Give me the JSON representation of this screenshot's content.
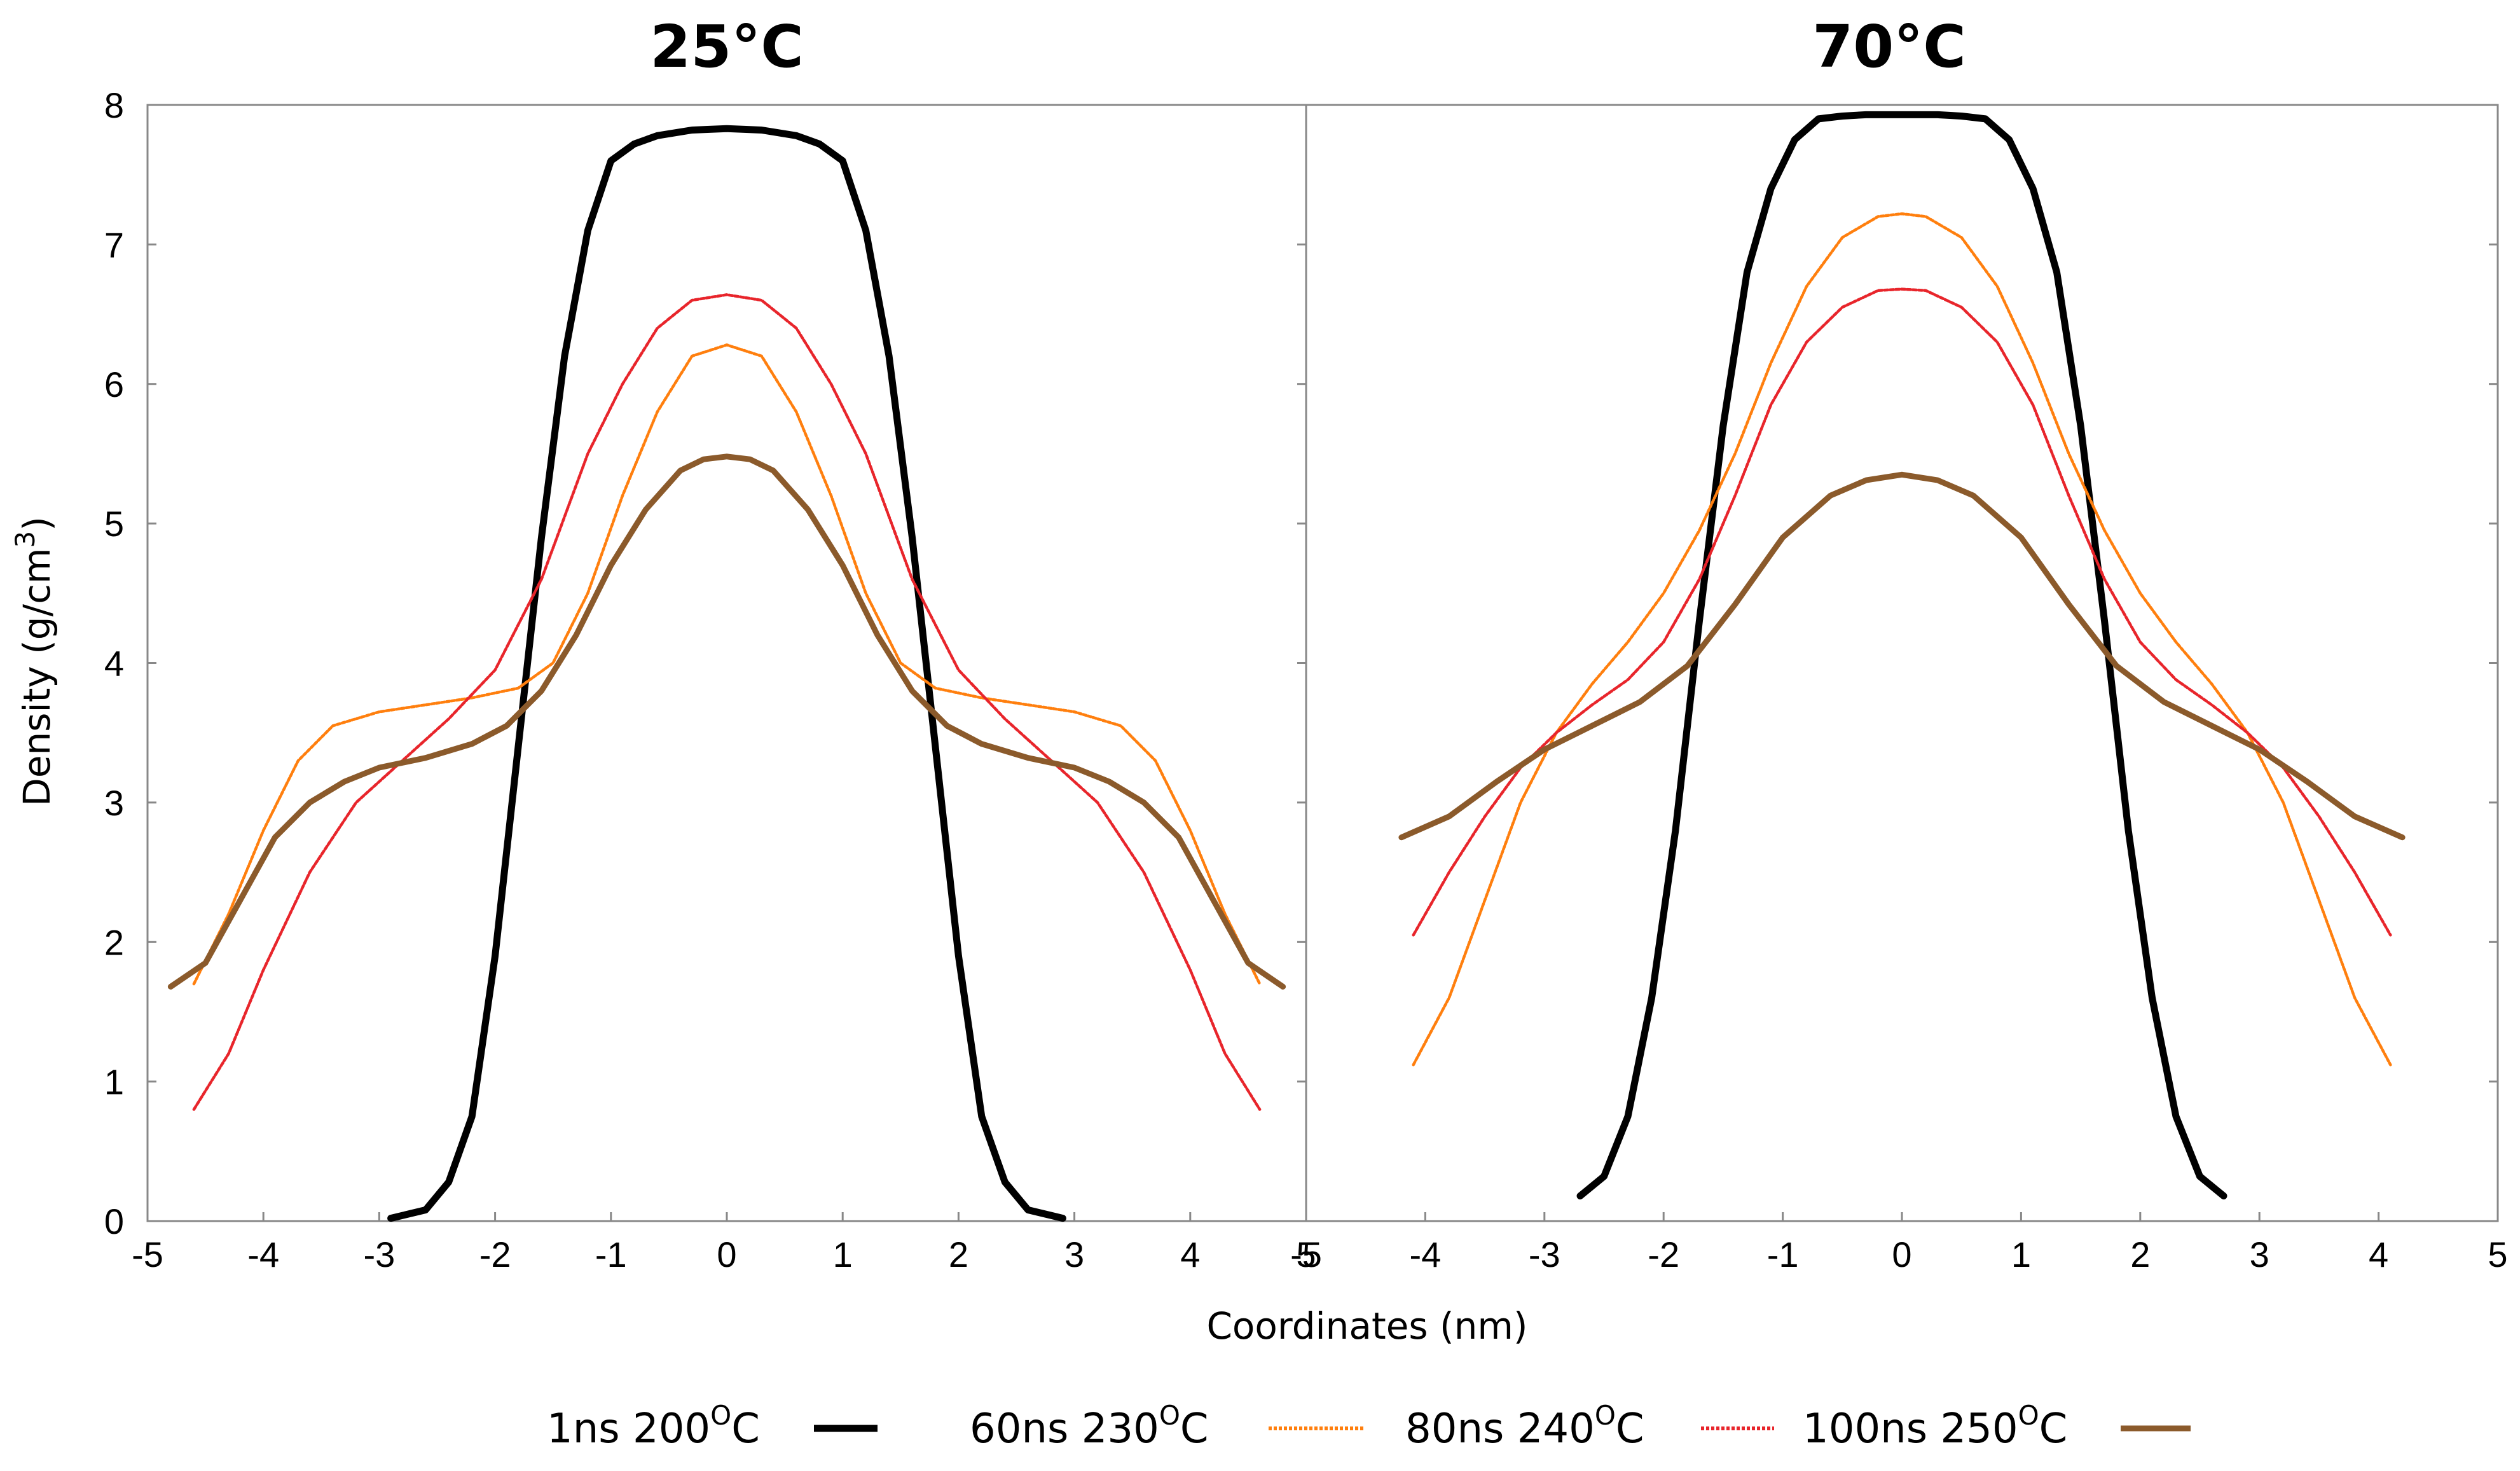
{
  "chart_data": {
    "type": "line",
    "xlabel": "Coordinates (nm)",
    "ylabel": "Density (g/cm",
    "ylabel_sup": "3",
    "ylabel_close": ")",
    "ylim": [
      0,
      8
    ],
    "y_ticks": [
      "0",
      "1",
      "2",
      "3",
      "4",
      "5",
      "6",
      "7",
      "8"
    ],
    "x_ticks": [
      "-5",
      "-4",
      "-3",
      "-2",
      "-1",
      "0",
      "1",
      "2",
      "3",
      "4",
      "5"
    ],
    "legend": [
      {
        "prefix": "1ns 200",
        "sup": "O",
        "suffix": "C",
        "color": "#000000",
        "style": "solid"
      },
      {
        "prefix": "60ns 230",
        "sup": "O",
        "suffix": "C",
        "color": "#ff7f0e",
        "style": "dotted"
      },
      {
        "prefix": "80ns 240",
        "sup": "O",
        "suffix": "C",
        "color": "#e8252b",
        "style": "dotted"
      },
      {
        "prefix": "100ns 250",
        "sup": "O",
        "suffix": "C",
        "color": "#8b5a2b",
        "style": "solid"
      }
    ],
    "panels": [
      {
        "title": "25°C",
        "xlim": [
          -5,
          5
        ],
        "series": [
          {
            "name": "1ns 200°C",
            "x": [
              -2.9,
              -2.6,
              -2.4,
              -2.2,
              -2.0,
              -1.8,
              -1.6,
              -1.4,
              -1.2,
              -1.0,
              -0.8,
              -0.6,
              -0.3,
              0,
              0.3,
              0.6,
              0.8,
              1.0,
              1.2,
              1.4,
              1.6,
              1.8,
              2.0,
              2.2,
              2.4,
              2.6,
              2.9
            ],
            "y": [
              0.02,
              0.08,
              0.28,
              0.75,
              1.9,
              3.4,
              4.9,
              6.2,
              7.1,
              7.6,
              7.72,
              7.78,
              7.82,
              7.83,
              7.82,
              7.78,
              7.72,
              7.6,
              7.1,
              6.2,
              4.9,
              3.4,
              1.9,
              0.75,
              0.28,
              0.08,
              0.02
            ]
          },
          {
            "name": "60ns 230°C",
            "x": [
              -4.6,
              -4.3,
              -4.0,
              -3.7,
              -3.4,
              -3.0,
              -2.6,
              -2.2,
              -1.8,
              -1.5,
              -1.2,
              -0.9,
              -0.6,
              -0.3,
              0,
              0.3,
              0.6,
              0.9,
              1.2,
              1.5,
              1.8,
              2.2,
              2.6,
              3.0,
              3.4,
              3.7,
              4.0,
              4.3,
              4.6
            ],
            "y": [
              1.7,
              2.2,
              2.8,
              3.3,
              3.55,
              3.65,
              3.7,
              3.75,
              3.82,
              4.0,
              4.5,
              5.2,
              5.8,
              6.2,
              6.28,
              6.2,
              5.8,
              5.2,
              4.5,
              4.0,
              3.82,
              3.75,
              3.7,
              3.65,
              3.55,
              3.3,
              2.8,
              2.2,
              1.7
            ]
          },
          {
            "name": "80ns 240°C",
            "x": [
              -4.6,
              -4.3,
              -4.0,
              -3.6,
              -3.2,
              -2.8,
              -2.4,
              -2.0,
              -1.6,
              -1.2,
              -0.9,
              -0.6,
              -0.3,
              0,
              0.3,
              0.6,
              0.9,
              1.2,
              1.6,
              2.0,
              2.4,
              2.8,
              3.2,
              3.6,
              4.0,
              4.3,
              4.6
            ],
            "y": [
              0.8,
              1.2,
              1.8,
              2.5,
              3.0,
              3.3,
              3.6,
              3.95,
              4.6,
              5.5,
              6.0,
              6.4,
              6.6,
              6.64,
              6.6,
              6.4,
              6.0,
              5.5,
              4.6,
              3.95,
              3.6,
              3.3,
              3.0,
              2.5,
              1.8,
              1.2,
              0.8
            ]
          },
          {
            "name": "100ns 250°C",
            "x": [
              -4.8,
              -4.5,
              -4.2,
              -3.9,
              -3.6,
              -3.3,
              -3.0,
              -2.6,
              -2.2,
              -1.9,
              -1.6,
              -1.3,
              -1.0,
              -0.7,
              -0.4,
              -0.2,
              0,
              0.2,
              0.4,
              0.7,
              1.0,
              1.3,
              1.6,
              1.9,
              2.2,
              2.6,
              3.0,
              3.3,
              3.6,
              3.9,
              4.2,
              4.5,
              4.8
            ],
            "y": [
              1.68,
              1.85,
              2.3,
              2.75,
              3.0,
              3.15,
              3.25,
              3.32,
              3.42,
              3.55,
              3.8,
              4.2,
              4.7,
              5.1,
              5.38,
              5.46,
              5.48,
              5.46,
              5.38,
              5.1,
              4.7,
              4.2,
              3.8,
              3.55,
              3.42,
              3.32,
              3.25,
              3.15,
              3.0,
              2.75,
              2.3,
              1.85,
              1.68
            ]
          }
        ]
      },
      {
        "title": "70°C",
        "xlim": [
          -5,
          5
        ],
        "series": [
          {
            "name": "1ns 200°C",
            "x": [
              -2.7,
              -2.5,
              -2.3,
              -2.1,
              -1.9,
              -1.7,
              -1.5,
              -1.3,
              -1.1,
              -0.9,
              -0.7,
              -0.5,
              -0.3,
              0,
              0.3,
              0.5,
              0.7,
              0.9,
              1.1,
              1.3,
              1.5,
              1.7,
              1.9,
              2.1,
              2.3,
              2.5,
              2.7
            ],
            "y": [
              0.18,
              0.32,
              0.75,
              1.6,
              2.8,
              4.3,
              5.7,
              6.8,
              7.4,
              7.75,
              7.9,
              7.92,
              7.93,
              7.93,
              7.93,
              7.92,
              7.9,
              7.75,
              7.4,
              6.8,
              5.7,
              4.3,
              2.8,
              1.6,
              0.75,
              0.32,
              0.18
            ]
          },
          {
            "name": "60ns 230°C",
            "x": [
              -4.1,
              -3.8,
              -3.5,
              -3.2,
              -2.9,
              -2.6,
              -2.3,
              -2.0,
              -1.7,
              -1.4,
              -1.1,
              -0.8,
              -0.5,
              -0.2,
              0,
              0.2,
              0.5,
              0.8,
              1.1,
              1.4,
              1.7,
              2.0,
              2.3,
              2.6,
              2.9,
              3.2,
              3.5,
              3.8,
              4.1
            ],
            "y": [
              1.12,
              1.6,
              2.3,
              3.0,
              3.5,
              3.85,
              4.15,
              4.5,
              4.95,
              5.5,
              6.15,
              6.7,
              7.05,
              7.2,
              7.22,
              7.2,
              7.05,
              6.7,
              6.15,
              5.5,
              4.95,
              4.5,
              4.15,
              3.85,
              3.5,
              3.0,
              2.3,
              1.6,
              1.12
            ]
          },
          {
            "name": "80ns 240°C",
            "x": [
              -4.1,
              -3.8,
              -3.5,
              -3.2,
              -2.9,
              -2.6,
              -2.3,
              -2.0,
              -1.7,
              -1.4,
              -1.1,
              -0.8,
              -0.5,
              -0.2,
              0,
              0.2,
              0.5,
              0.8,
              1.1,
              1.4,
              1.7,
              2.0,
              2.3,
              2.6,
              2.9,
              3.2,
              3.5,
              3.8,
              4.1
            ],
            "y": [
              2.05,
              2.5,
              2.9,
              3.25,
              3.5,
              3.7,
              3.88,
              4.15,
              4.6,
              5.2,
              5.85,
              6.3,
              6.55,
              6.67,
              6.68,
              6.67,
              6.55,
              6.3,
              5.85,
              5.2,
              4.6,
              4.15,
              3.88,
              3.7,
              3.5,
              3.25,
              2.9,
              2.5,
              2.05
            ]
          },
          {
            "name": "100ns 250°C",
            "x": [
              -4.2,
              -3.8,
              -3.4,
              -3.0,
              -2.6,
              -2.2,
              -1.8,
              -1.4,
              -1.0,
              -0.6,
              -0.3,
              0,
              0.3,
              0.6,
              1.0,
              1.4,
              1.8,
              2.2,
              2.6,
              3.0,
              3.4,
              3.8,
              4.2
            ],
            "y": [
              2.75,
              2.9,
              3.15,
              3.38,
              3.55,
              3.72,
              3.98,
              4.42,
              4.9,
              5.2,
              5.31,
              5.35,
              5.31,
              5.2,
              4.9,
              4.42,
              3.98,
              3.72,
              3.55,
              3.38,
              3.15,
              2.9,
              2.75
            ]
          }
        ]
      }
    ]
  }
}
